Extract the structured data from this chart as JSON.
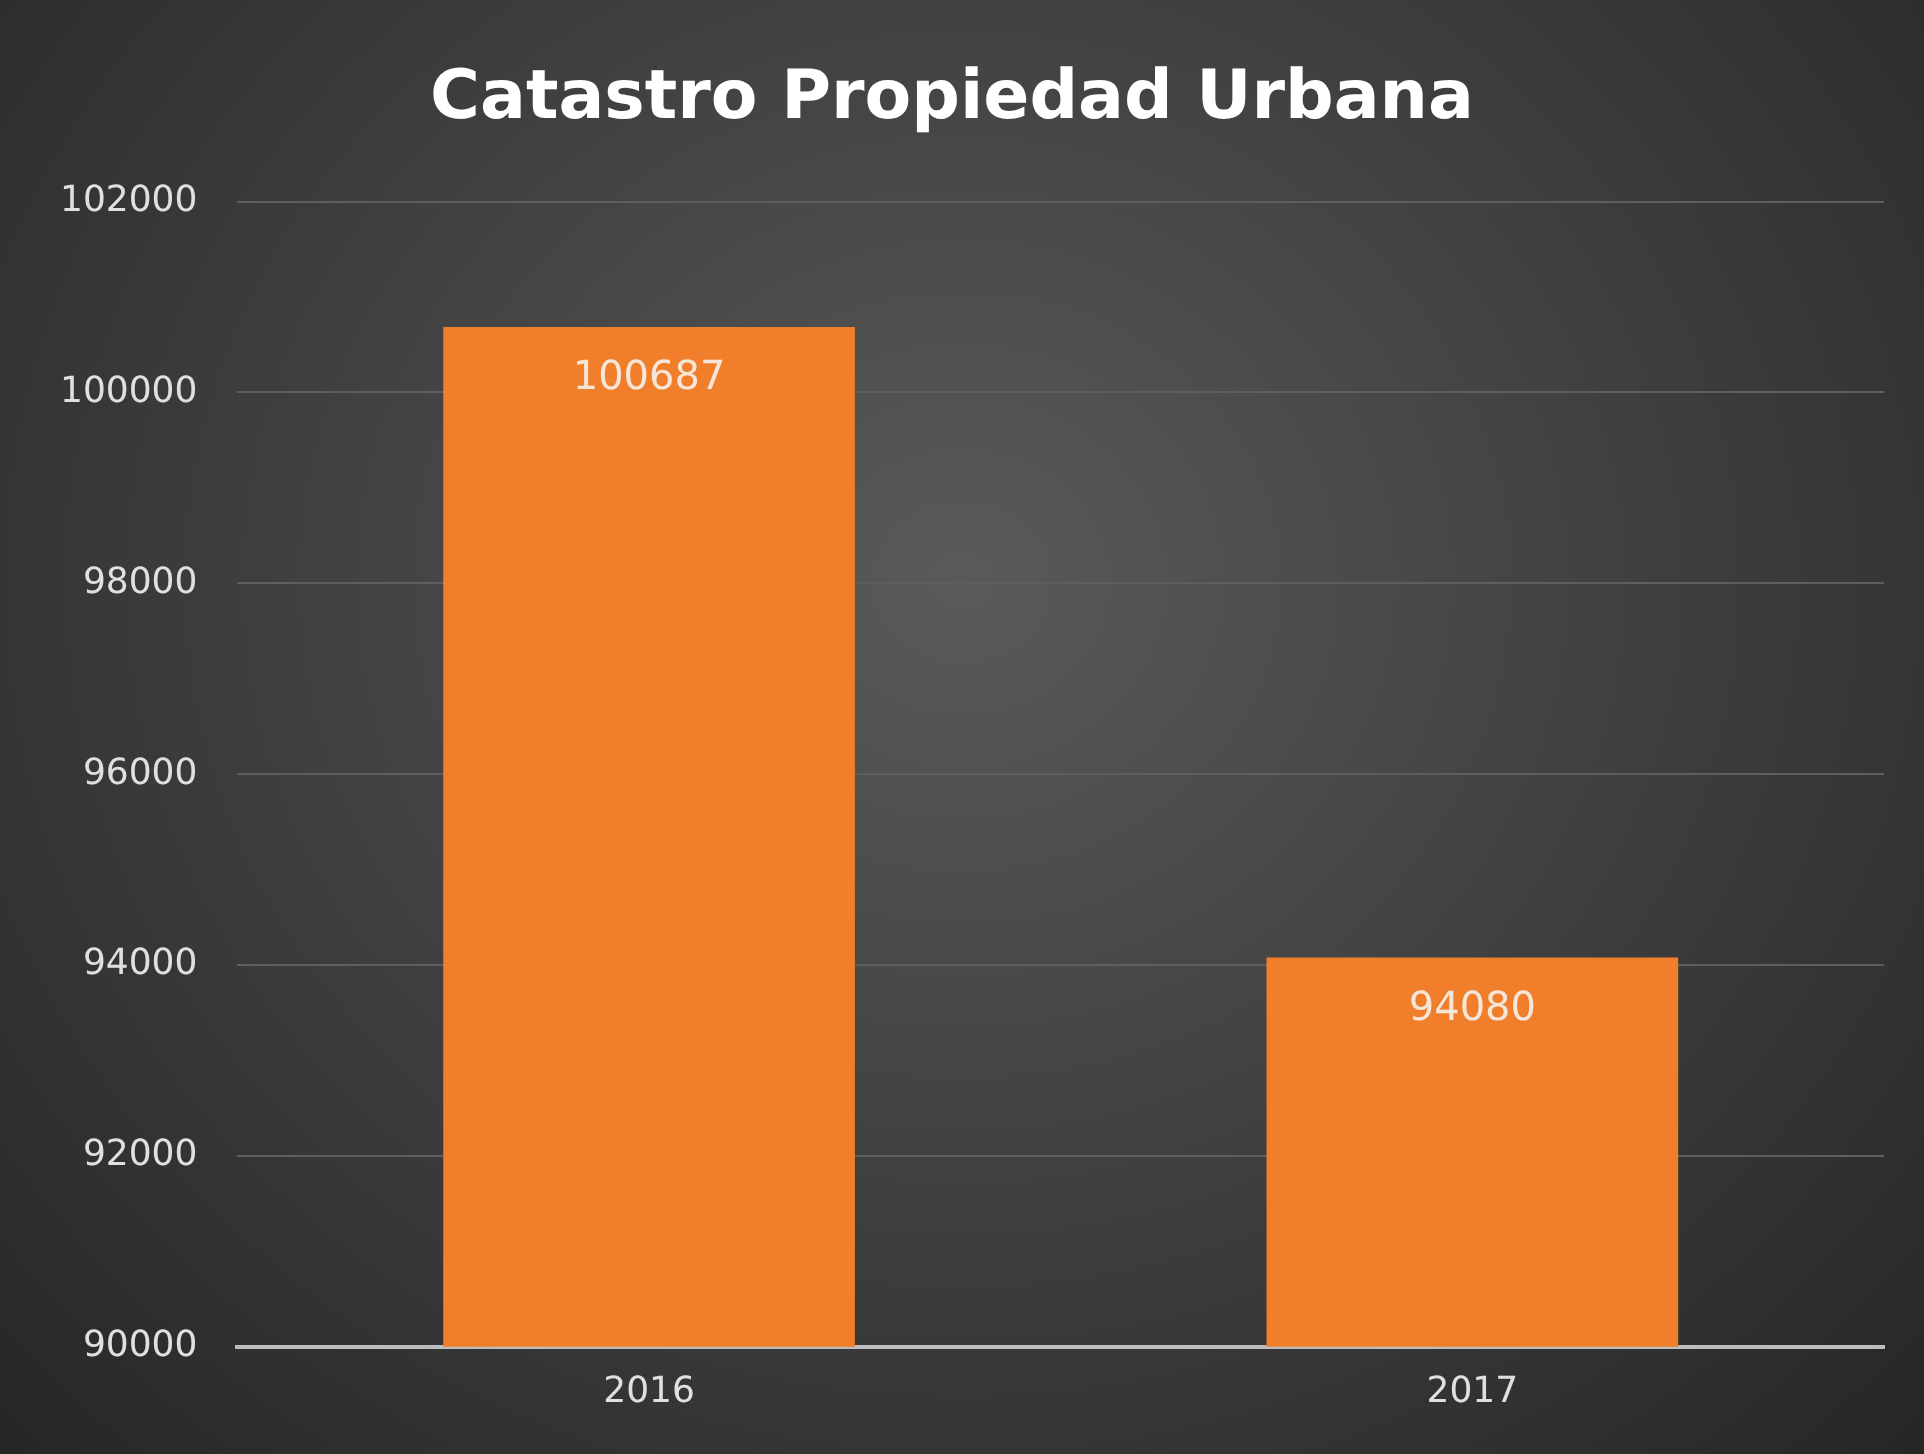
{
  "chart_data": {
    "type": "bar",
    "title": "Catastro Propiedad Urbana",
    "categories": [
      "2016",
      "2017"
    ],
    "values": [
      100687,
      94080
    ],
    "color": "#f07e2a",
    "ylim": [
      90000,
      102000
    ],
    "yticks": [
      90000,
      92000,
      94000,
      96000,
      98000,
      100000,
      102000
    ],
    "grid": "y",
    "legend": false,
    "data_labels": true
  }
}
